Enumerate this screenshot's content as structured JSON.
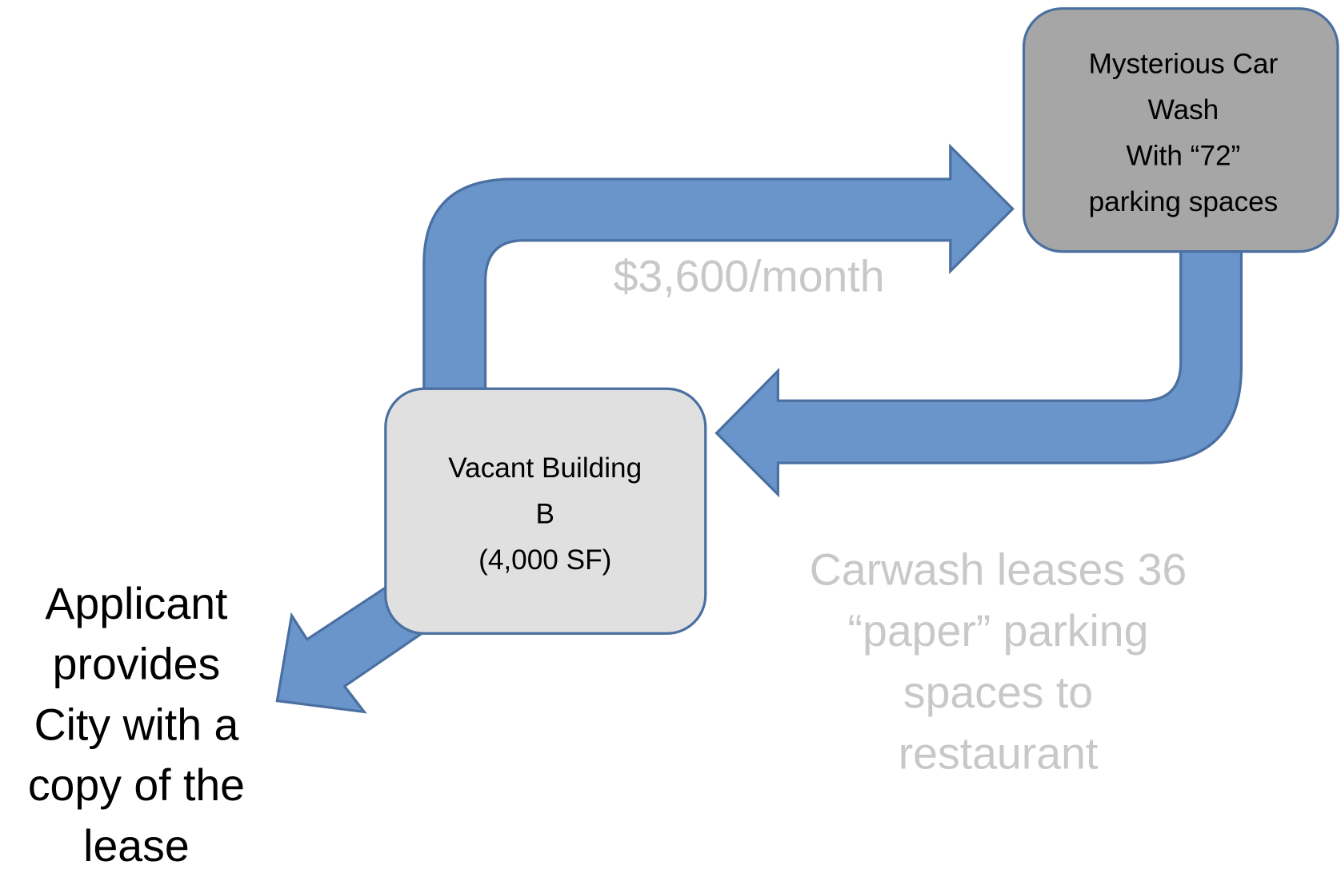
{
  "nodes": [
    {
      "label": [
        "Mysterious Car",
        "Wash",
        "With “72”",
        "parking spaces"
      ]
    },
    {
      "label": [
        "Vacant Building",
        "B",
        "(4,000 SF)"
      ]
    }
  ],
  "payment": "$3,600/month",
  "lease_note": [
    "Carwash leases 36",
    "“paper” parking",
    "spaces to",
    "restaurant"
  ],
  "applicant_note": [
    "Applicant",
    "provides",
    "City with a",
    "copy of the",
    "lease"
  ]
}
